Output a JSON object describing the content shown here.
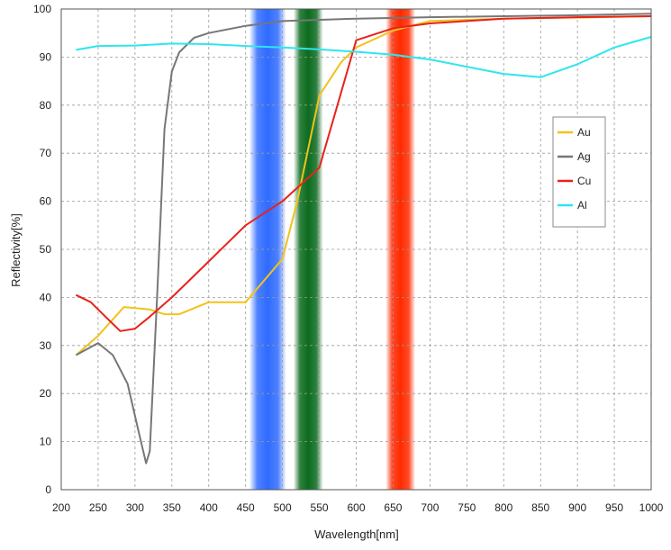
{
  "chart_data": {
    "type": "line",
    "title": "",
    "xlabel": "Wavelength[nm]",
    "ylabel": "Reflectivity[%]",
    "xlim": [
      200,
      1000
    ],
    "ylim": [
      0,
      100
    ],
    "x_ticks": [
      200,
      250,
      300,
      350,
      400,
      450,
      500,
      550,
      600,
      650,
      700,
      750,
      800,
      850,
      900,
      950,
      1000
    ],
    "y_ticks": [
      0,
      10,
      20,
      30,
      40,
      50,
      60,
      70,
      80,
      90,
      100
    ],
    "grid": true,
    "legend_position": "right",
    "bands": [
      {
        "name": "blue",
        "color": "#2f6bff",
        "x_range": [
          455,
          505
        ]
      },
      {
        "name": "green",
        "color": "#0b6b1e",
        "x_range": [
          515,
          555
        ]
      },
      {
        "name": "red",
        "color": "#ff2a00",
        "x_range": [
          640,
          680
        ]
      }
    ],
    "series": [
      {
        "name": "Au",
        "color": "#f2c21a",
        "x": [
          220,
          250,
          285,
          320,
          340,
          360,
          400,
          450,
          500,
          520,
          550,
          580,
          600,
          650,
          700,
          800,
          900,
          1000
        ],
        "y": [
          28,
          32,
          38,
          37.5,
          36.5,
          36.5,
          39,
          39,
          48,
          60,
          82,
          89,
          92,
          95.5,
          97.5,
          98,
          98.2,
          98.5
        ]
      },
      {
        "name": "Ag",
        "color": "#777777",
        "x": [
          220,
          250,
          270,
          290,
          305,
          315,
          320,
          330,
          340,
          350,
          360,
          380,
          400,
          450,
          500,
          600,
          700,
          800,
          900,
          1000
        ],
        "y": [
          28,
          30.5,
          28,
          22,
          12,
          5.5,
          8,
          40,
          75,
          87,
          91,
          94,
          95,
          96.5,
          97.5,
          98,
          98.3,
          98.5,
          98.7,
          99
        ]
      },
      {
        "name": "Cu",
        "color": "#e8221b",
        "x": [
          220,
          240,
          260,
          280,
          300,
          320,
          350,
          400,
          450,
          500,
          550,
          600,
          650,
          700,
          800,
          900,
          1000
        ],
        "y": [
          40.5,
          39,
          36,
          33,
          33.5,
          36,
          40,
          47.5,
          55,
          60,
          67,
          93.5,
          96,
          97,
          98,
          98.3,
          98.5
        ]
      },
      {
        "name": "Al",
        "color": "#2ee6ee",
        "x": [
          220,
          250,
          300,
          350,
          400,
          450,
          500,
          550,
          600,
          650,
          700,
          750,
          800,
          850,
          900,
          950,
          1000
        ],
        "y": [
          91.5,
          92.3,
          92.4,
          92.8,
          92.7,
          92.3,
          92.0,
          91.6,
          91.1,
          90.5,
          89.5,
          88.0,
          86.5,
          85.8,
          88.5,
          92.0,
          94.2
        ]
      }
    ]
  }
}
